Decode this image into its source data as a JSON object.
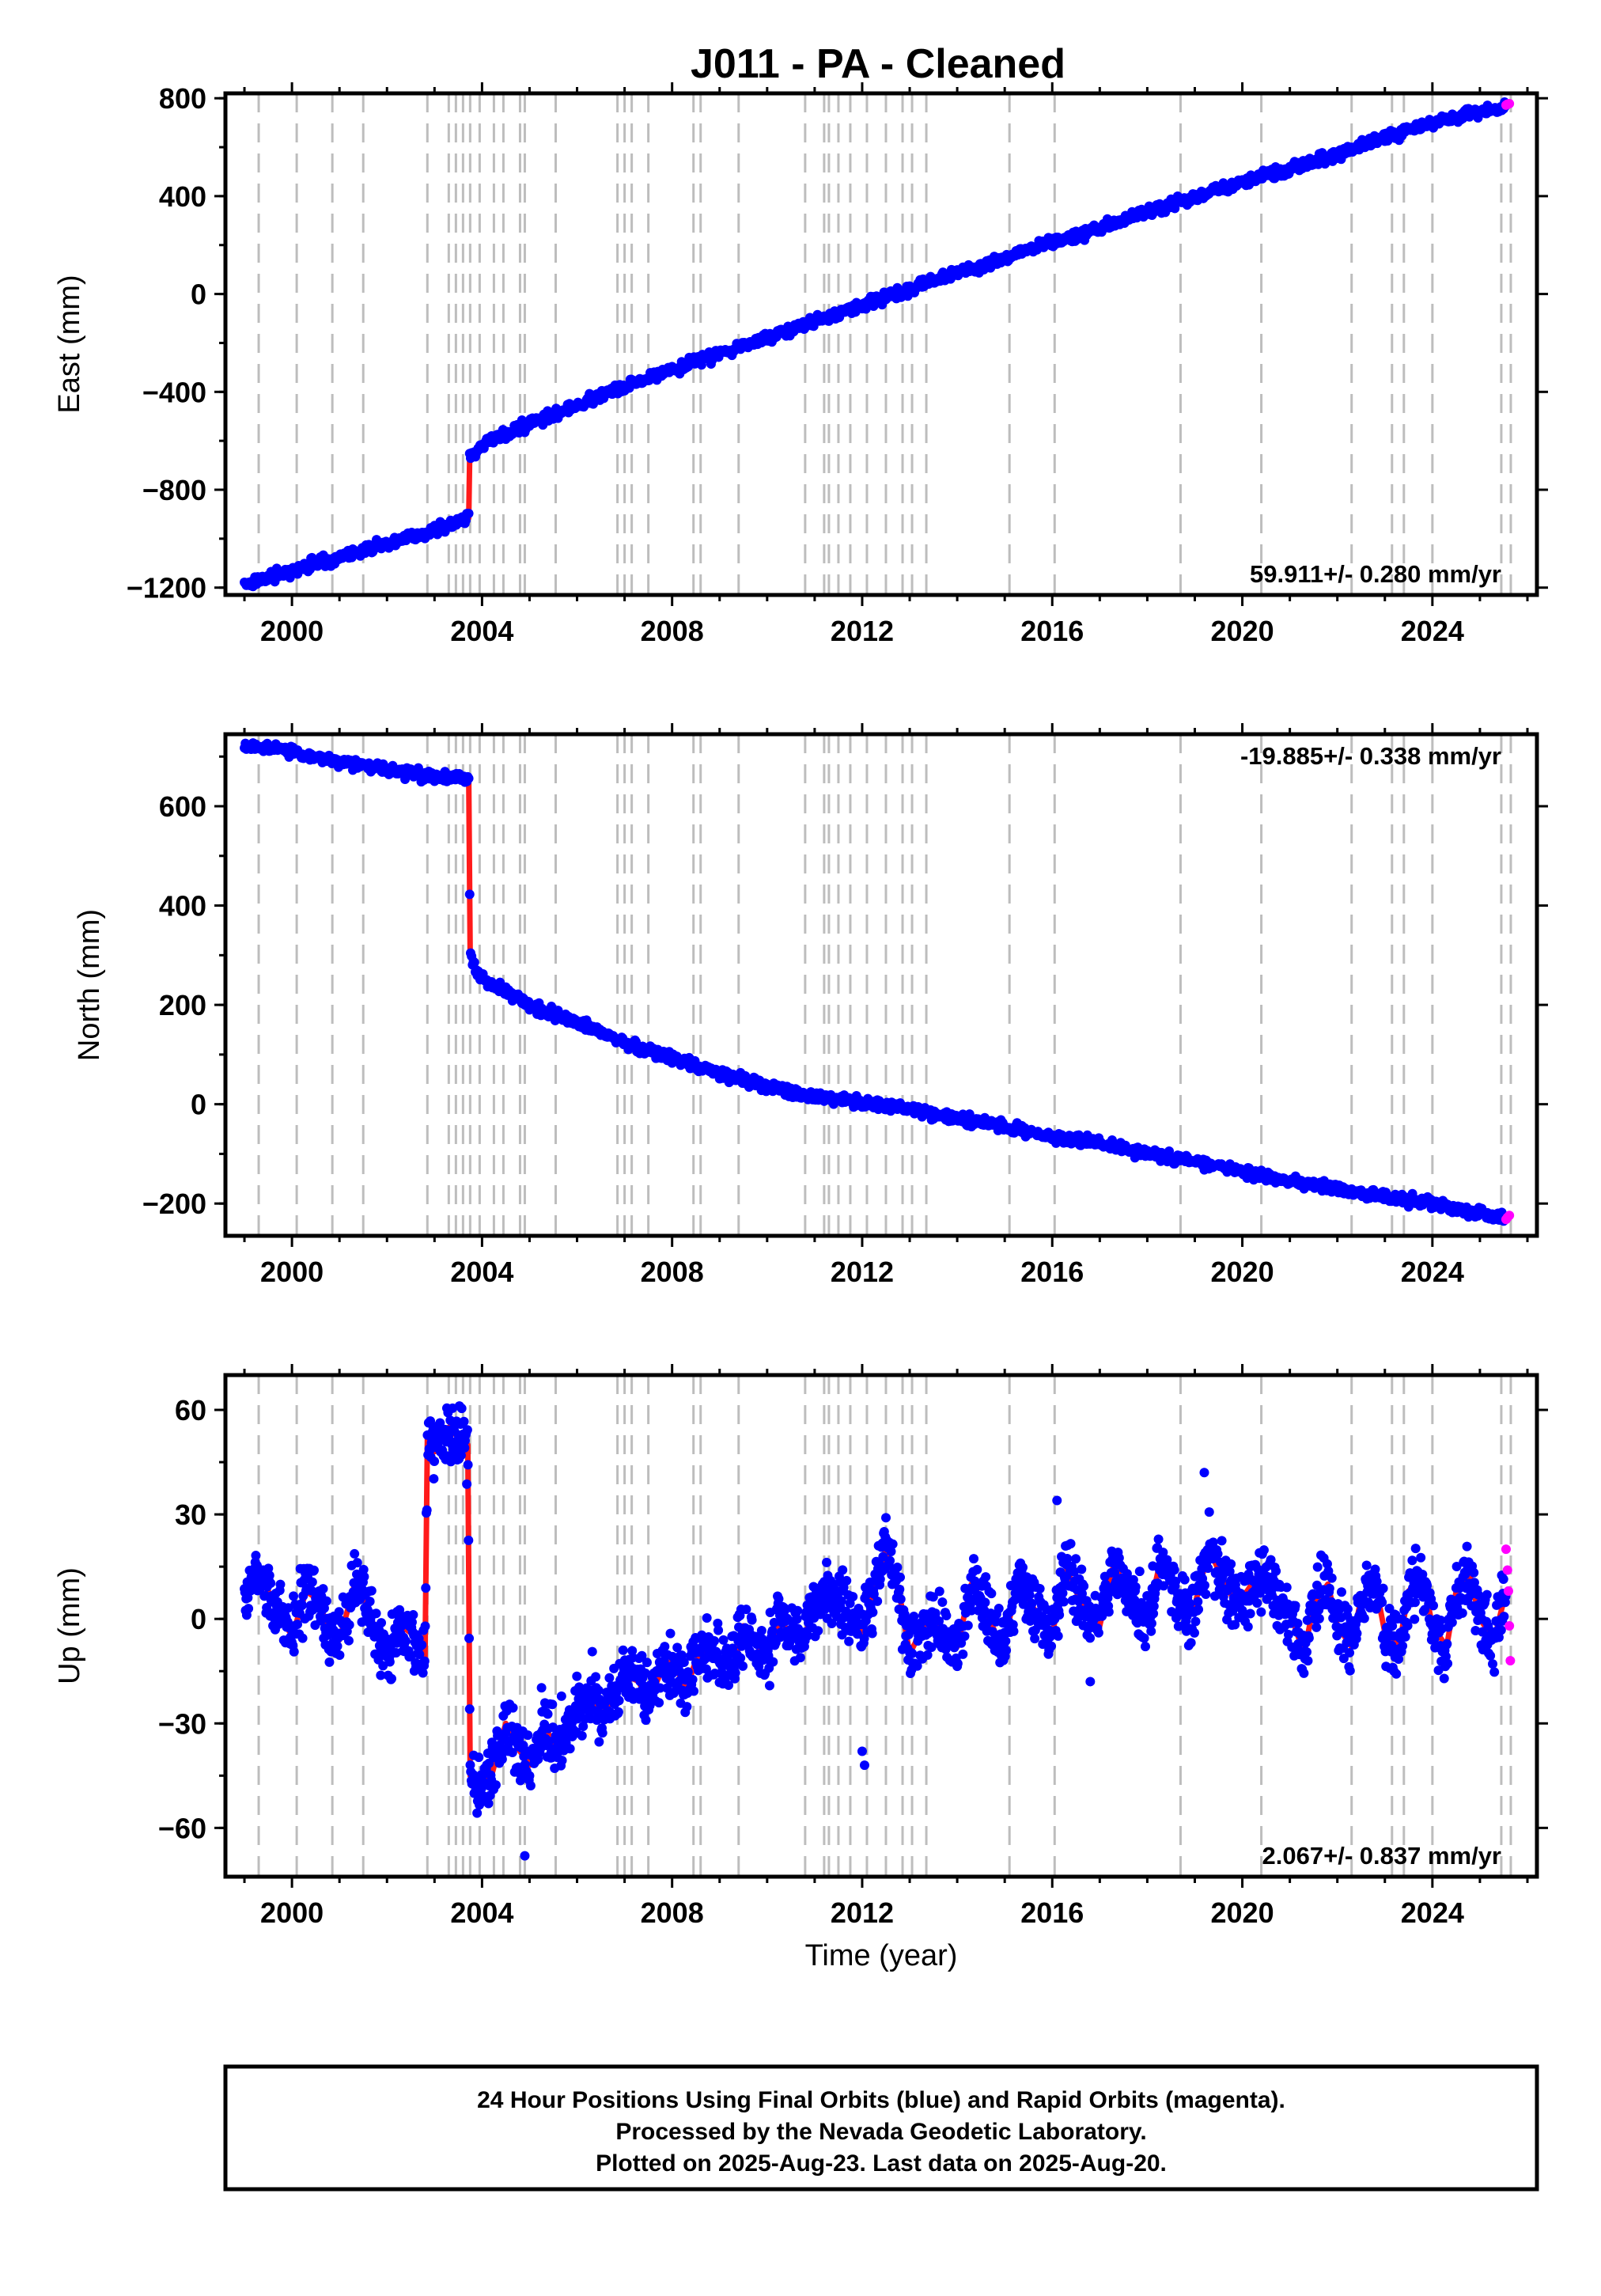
{
  "title": "J011  - PA - Cleaned",
  "colors": {
    "final_orbits": "#0000ff",
    "rapid_orbits": "#ff00ff",
    "model": "#ff1a1a",
    "event_lines": "#bdbdbd"
  },
  "event_years": [
    1999.3,
    2000.1,
    2000.85,
    2001.5,
    2002.85,
    2003.3,
    2003.45,
    2003.6,
    2003.75,
    2003.95,
    2004.25,
    2004.45,
    2004.8,
    2004.9,
    2005.55,
    2006.85,
    2007.0,
    2007.15,
    2007.5,
    2008.45,
    2008.6,
    2009.4,
    2010.8,
    2011.2,
    2011.3,
    2011.5,
    2011.75,
    2012.1,
    2012.5,
    2012.85,
    2013.05,
    2013.35,
    2015.1,
    2016.05,
    2018.7,
    2020.4,
    2022.3,
    2023.15,
    2023.4,
    2024.0,
    2025.45,
    2025.65
  ],
  "chart_data": [
    {
      "type": "scatter",
      "panel": "east",
      "ylabel": "East (mm)",
      "xlim": [
        1998.6,
        2026.2
      ],
      "ylim": [
        -1230,
        820
      ],
      "xticks": [
        2000,
        2004,
        2008,
        2012,
        2016,
        2020,
        2024
      ],
      "yticks": [
        -1200,
        -800,
        -400,
        0,
        400,
        800
      ],
      "ytick_labels": [
        "−1200",
        "−800",
        "−400",
        "0",
        "400",
        "800"
      ],
      "rate_text": "59.911+/- 0.280 mm/yr",
      "rate_position": "bottom-right",
      "series": [
        {
          "kind": "final",
          "x": [
            1999.0,
            2000.0,
            2001.0,
            2002.0,
            2003.0,
            2003.72,
            2003.74,
            2004.0,
            2004.5,
            2005.0,
            2006.0,
            2007.0,
            2008.0,
            2009.0,
            2010.0,
            2011.0,
            2012.0,
            2013.0,
            2014.0,
            2015.0,
            2016.0,
            2017.0,
            2018.0,
            2019.0,
            2020.0,
            2021.0,
            2022.0,
            2023.0,
            2024.0,
            2025.0,
            2025.55
          ],
          "y": [
            -1185,
            -1130,
            -1075,
            -1020,
            -965,
            -915,
            -660,
            -615,
            -575,
            -530,
            -455,
            -375,
            -310,
            -245,
            -175,
            -110,
            -45,
            20,
            85,
            150,
            210,
            270,
            335,
            395,
            455,
            510,
            575,
            640,
            700,
            745,
            770
          ]
        },
        {
          "kind": "rapid",
          "x": [
            2025.55,
            2025.58,
            2025.62
          ],
          "y": [
            772,
            776,
            778
          ]
        }
      ]
    },
    {
      "type": "scatter",
      "panel": "north",
      "ylabel": "North (mm)",
      "xlim": [
        1998.6,
        2026.2
      ],
      "ylim": [
        -265,
        745
      ],
      "xticks": [
        2000,
        2004,
        2008,
        2012,
        2016,
        2020,
        2024
      ],
      "yticks": [
        -200,
        0,
        200,
        400,
        600
      ],
      "ytick_labels": [
        "−200",
        "0",
        "200",
        "400",
        "600"
      ],
      "rate_text": "-19.885+/- 0.338 mm/yr",
      "rate_position": "top-right",
      "series": [
        {
          "kind": "final",
          "x": [
            1999.0,
            2000.0,
            2001.0,
            2002.0,
            2003.0,
            2003.7,
            2003.72,
            2003.75,
            2003.9,
            2004.2,
            2004.6,
            2005.0,
            2005.5,
            2006.0,
            2007.0,
            2008.0,
            2009.0,
            2010.0,
            2011.0,
            2012.0,
            2013.0,
            2014.0,
            2015.0,
            2016.0,
            2017.0,
            2018.0,
            2019.0,
            2020.0,
            2021.0,
            2022.0,
            2023.0,
            2024.0,
            2025.0,
            2025.55
          ],
          "y": [
            720,
            710,
            690,
            675,
            660,
            655,
            655,
            300,
            265,
            240,
            220,
            200,
            180,
            165,
            125,
            95,
            60,
            35,
            15,
            5,
            -10,
            -30,
            -45,
            -65,
            -80,
            -100,
            -115,
            -135,
            -155,
            -170,
            -185,
            -200,
            -220,
            -232
          ]
        },
        {
          "kind": "rapid",
          "x": [
            2025.55,
            2025.58,
            2025.62
          ],
          "y": [
            -232,
            -228,
            -224
          ]
        }
      ]
    },
    {
      "type": "scatter",
      "panel": "up",
      "ylabel": "Up (mm)",
      "xlabel": "Time (year)",
      "xlim": [
        1998.6,
        2026.2
      ],
      "ylim": [
        -74,
        70
      ],
      "xticks": [
        2000,
        2004,
        2008,
        2012,
        2016,
        2020,
        2024
      ],
      "yticks": [
        -60,
        -30,
        0,
        30,
        60
      ],
      "ytick_labels": [
        "−60",
        "−30",
        "0",
        "30",
        "60"
      ],
      "rate_text": "2.067+/- 0.837 mm/yr",
      "rate_position": "bottom-right",
      "series": [
        {
          "kind": "final",
          "x": [
            1999.0,
            1999.3,
            1999.5,
            1999.8,
            2000.0,
            2000.3,
            2000.5,
            2000.8,
            2001.0,
            2001.3,
            2001.5,
            2001.8,
            2002.0,
            2002.3,
            2002.5,
            2002.8,
            2002.85,
            2003.0,
            2003.3,
            2003.5,
            2003.7,
            2003.75,
            2003.9,
            2004.2,
            2004.5,
            2004.8,
            2005.0,
            2005.3,
            2005.5,
            2005.8,
            2006.0,
            2006.3,
            2006.5,
            2006.8,
            2007.0,
            2007.3,
            2007.5,
            2007.8,
            2008.0,
            2008.3,
            2008.5,
            2008.8,
            2009.0,
            2009.3,
            2009.5,
            2009.8,
            2010.0,
            2010.3,
            2010.5,
            2010.8,
            2011.0,
            2011.3,
            2011.5,
            2011.8,
            2012.0,
            2012.3,
            2012.5,
            2012.8,
            2013.0,
            2013.3,
            2013.5,
            2013.8,
            2014.0,
            2014.3,
            2014.5,
            2014.8,
            2015.0,
            2015.3,
            2015.5,
            2015.8,
            2016.0,
            2016.3,
            2016.5,
            2016.8,
            2017.0,
            2017.3,
            2017.5,
            2017.8,
            2018.0,
            2018.3,
            2018.5,
            2018.8,
            2019.0,
            2019.3,
            2019.5,
            2019.8,
            2020.0,
            2020.3,
            2020.5,
            2020.8,
            2021.0,
            2021.3,
            2021.5,
            2021.8,
            2022.0,
            2022.3,
            2022.5,
            2022.8,
            2023.0,
            2023.3,
            2023.5,
            2023.8,
            2024.0,
            2024.3,
            2024.5,
            2024.8,
            2025.0,
            2025.3,
            2025.55
          ],
          "y": [
            5,
            12,
            8,
            0,
            -5,
            8,
            6,
            -3,
            -6,
            9,
            7,
            -5,
            -10,
            -2,
            -4,
            -12,
            52,
            48,
            55,
            52,
            50,
            -45,
            -48,
            -45,
            -30,
            -38,
            -42,
            -30,
            -36,
            -32,
            -26,
            -20,
            -28,
            -22,
            -16,
            -18,
            -24,
            -14,
            -12,
            -20,
            -12,
            -8,
            -12,
            -14,
            -2,
            -8,
            -10,
            0,
            -6,
            -4,
            2,
            8,
            4,
            0,
            -4,
            10,
            20,
            6,
            -10,
            -2,
            2,
            -6,
            -8,
            10,
            6,
            -4,
            -6,
            12,
            6,
            -2,
            -4,
            14,
            8,
            0,
            -2,
            16,
            10,
            2,
            0,
            18,
            10,
            2,
            4,
            20,
            14,
            6,
            6,
            12,
            10,
            4,
            2,
            -10,
            4,
            10,
            -2,
            -8,
            6,
            10,
            -4,
            -8,
            8,
            12,
            -2,
            -8,
            8,
            12,
            0,
            -6,
            8
          ]
        },
        {
          "kind": "rapid",
          "x": [
            2025.55,
            2025.58,
            2025.6,
            2025.62,
            2025.64
          ],
          "y": [
            20,
            14,
            8,
            -2,
            -12
          ]
        }
      ]
    }
  ],
  "footer": {
    "line1": "24 Hour Positions Using Final Orbits (blue) and Rapid Orbits (magenta).",
    "line2": "Processed by the Nevada Geodetic Laboratory.",
    "line3": "Plotted on 2025-Aug-23. Last data on 2025-Aug-20."
  }
}
